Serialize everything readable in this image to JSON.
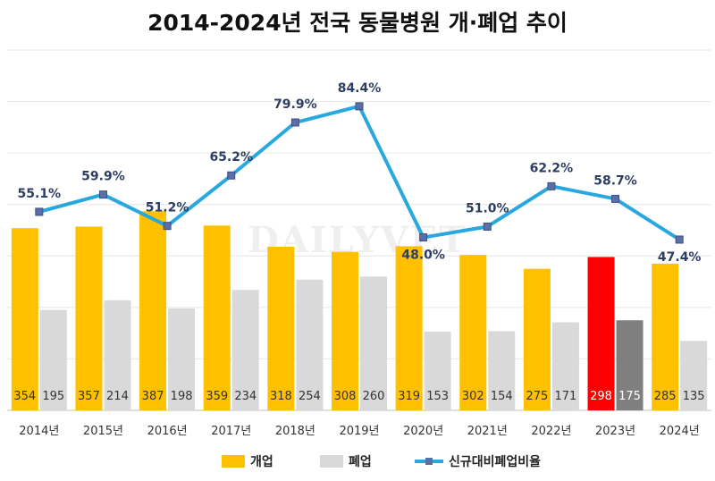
{
  "chart_data": {
    "type": "bar",
    "title": "2014-2024년 전국 동물병원 개·폐업 추이",
    "watermark": "DAILYVET",
    "categories": [
      "2014년",
      "2015년",
      "2016년",
      "2017년",
      "2018년",
      "2019년",
      "2020년",
      "2021년",
      "2022년",
      "2023년",
      "2024년"
    ],
    "series": [
      {
        "name": "개업",
        "type": "bar",
        "values": [
          354,
          357,
          387,
          359,
          318,
          308,
          319,
          302,
          275,
          298,
          285
        ],
        "color": "#FFC000",
        "highlight_color": "#FF0000"
      },
      {
        "name": "폐업",
        "type": "bar",
        "values": [
          195,
          214,
          198,
          234,
          254,
          260,
          153,
          154,
          171,
          175,
          135
        ],
        "color": "#D9D9D9",
        "highlight_color": "#7F7F7F"
      },
      {
        "name": "신규대비폐업비율",
        "type": "line",
        "values": [
          55.1,
          59.9,
          51.2,
          65.2,
          79.9,
          84.4,
          48.0,
          51.0,
          62.2,
          58.7,
          47.4
        ],
        "labels": [
          "55.1%",
          "59.9%",
          "51.2%",
          "65.2%",
          "79.9%",
          "84.4%",
          "48.0%",
          "51.0%",
          "62.2%",
          "58.7%",
          "47.4%"
        ],
        "color": "#29A8E0",
        "marker_color": "#5A6FA8",
        "axis": "secondary"
      }
    ],
    "highlight_category": "2023년",
    "ylim_bars": [
      0,
      700
    ],
    "ylim_line": [
      0,
      100
    ],
    "grid": true,
    "legend": "bottom",
    "xlabel": "",
    "ylabel": ""
  }
}
